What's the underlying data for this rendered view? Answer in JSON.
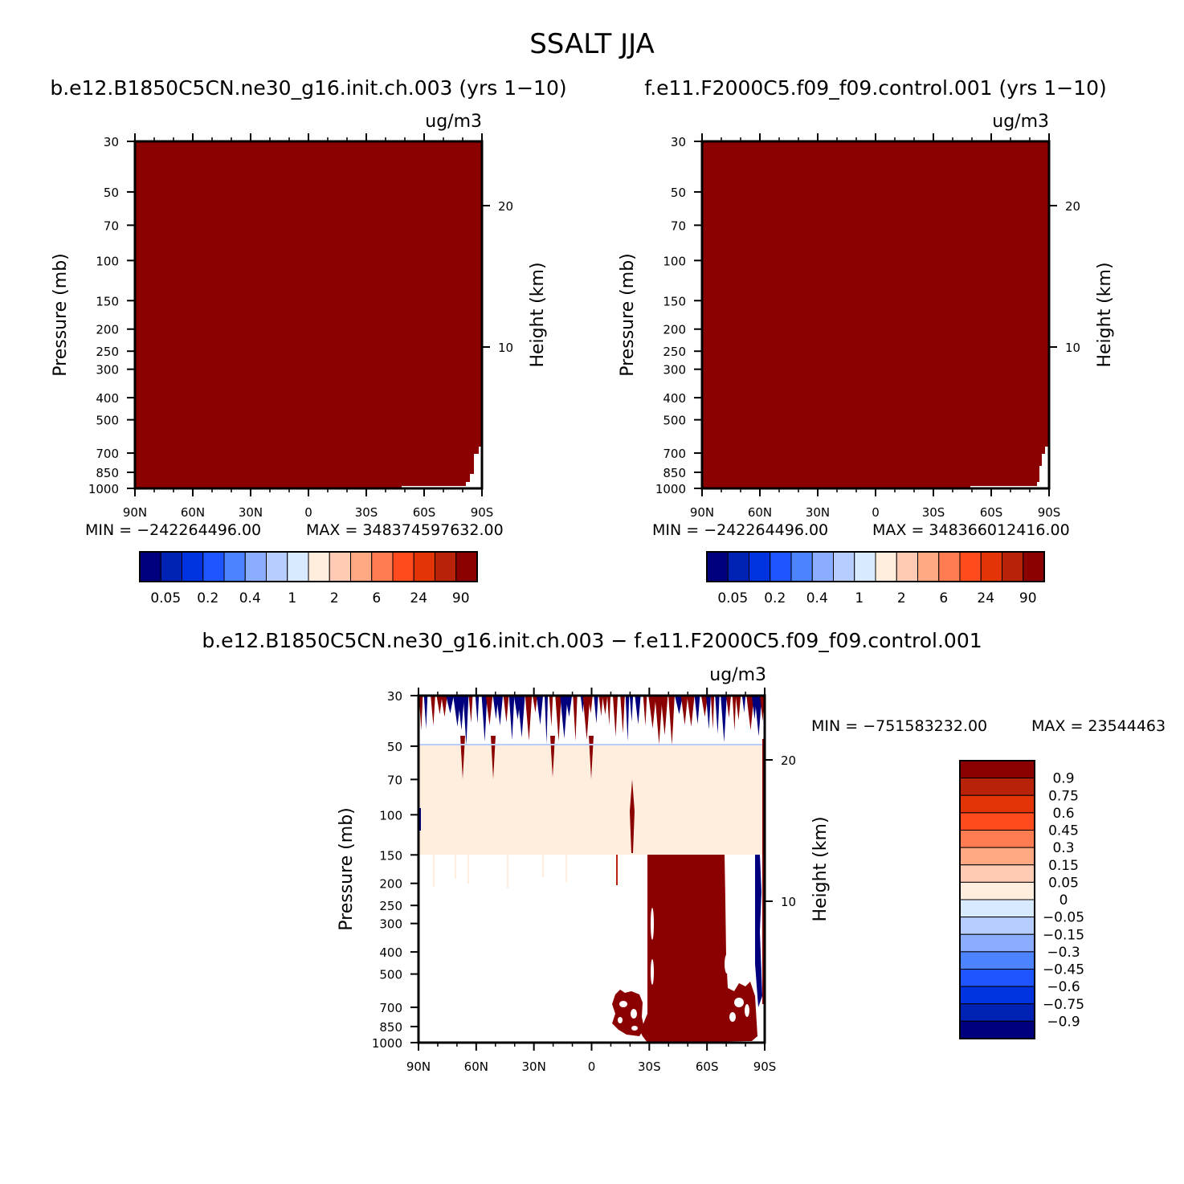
{
  "title": "SSALT JJA",
  "chart_data": [
    {
      "id": "panel1",
      "type": "heatmap",
      "title": "b.e12.B1850C5CN.ne30_g16.init.ch.003 (yrs 1-10)",
      "units": "ug/m3",
      "xlabel": "",
      "ylabel": "Pressure (mb)",
      "y2label": "Height (km)",
      "x_ticks": [
        "90N",
        "60N",
        "30N",
        "0",
        "30S",
        "60S",
        "90S"
      ],
      "y_ticks": [
        30,
        50,
        70,
        100,
        150,
        200,
        250,
        300,
        400,
        500,
        700,
        850,
        1000
      ],
      "y2_ticks": [
        10,
        20
      ],
      "y_scale": "log",
      "ylim": [
        1000,
        30
      ],
      "min_label": "MIN = -242264496.00",
      "max_label": "MAX = 348374597632.00",
      "colorbar_labels": [
        "0.05",
        "0.2",
        "0.4",
        "1",
        "2",
        "6",
        "24",
        "90"
      ],
      "field_color": "#8B0000"
    },
    {
      "id": "panel2",
      "type": "heatmap",
      "title": "f.e11.F2000C5.f09_f09.control.001 (yrs 1-10)",
      "units": "ug/m3",
      "xlabel": "",
      "ylabel": "Pressure (mb)",
      "y2label": "Height (km)",
      "x_ticks": [
        "90N",
        "60N",
        "30N",
        "0",
        "30S",
        "60S",
        "90S"
      ],
      "y_ticks": [
        30,
        50,
        70,
        100,
        150,
        200,
        250,
        300,
        400,
        500,
        700,
        850,
        1000
      ],
      "y2_ticks": [
        10,
        20
      ],
      "y_scale": "log",
      "ylim": [
        1000,
        30
      ],
      "min_label": "MIN = -242264496.00",
      "max_label": "MAX = 348366012416.00",
      "colorbar_labels": [
        "0.05",
        "0.2",
        "0.4",
        "1",
        "2",
        "6",
        "24",
        "90"
      ],
      "field_color": "#8B0000"
    },
    {
      "id": "panel3",
      "type": "heatmap",
      "title": "b.e12.B1850C5CN.ne30_g16.init.ch.003 - f.e11.F2000C5.f09_f09.control.001",
      "units": "ug/m3",
      "xlabel": "",
      "ylabel": "Pressure (mb)",
      "y2label": "Height (km)",
      "x_ticks": [
        "90N",
        "60N",
        "30N",
        "0",
        "30S",
        "60S",
        "90S"
      ],
      "y_ticks": [
        30,
        50,
        70,
        100,
        150,
        200,
        250,
        300,
        400,
        500,
        700,
        850,
        1000
      ],
      "y2_ticks": [
        10,
        20
      ],
      "y_scale": "log",
      "ylim": [
        1000,
        30
      ],
      "min_label": "MIN = -751583232.00",
      "max_label": "MAX = 23544463",
      "colorbar_labels": [
        "0.9",
        "0.75",
        "0.6",
        "0.45",
        "0.3",
        "0.15",
        "0.05",
        "0",
        "-0.05",
        "-0.15",
        "-0.3",
        "-0.45",
        "-0.6",
        "-0.75",
        "-0.9"
      ]
    }
  ],
  "palettes": {
    "sequential": [
      "#00007F",
      "#0022B4",
      "#0033E0",
      "#1F55FF",
      "#4C84FF",
      "#8AADFF",
      "#B7CCFF",
      "#D8EAFF",
      "#FFEEDD",
      "#FFCBB4",
      "#FFA882",
      "#FF7C52",
      "#FF4B1E",
      "#E23406",
      "#B82208",
      "#8B0000"
    ],
    "difference": [
      "#8B0000",
      "#B82208",
      "#E23406",
      "#FF4B1E",
      "#FF7C52",
      "#FFA882",
      "#FFCBB4",
      "#FFEEDD",
      "#D8EAFF",
      "#B7CCFF",
      "#8AADFF",
      "#4C84FF",
      "#1F55FF",
      "#0033E0",
      "#0022B4",
      "#00007F"
    ]
  },
  "colors": {
    "dark_red": "#8B0000",
    "light_peach": "#FFEEDD",
    "navy": "#00007F"
  }
}
